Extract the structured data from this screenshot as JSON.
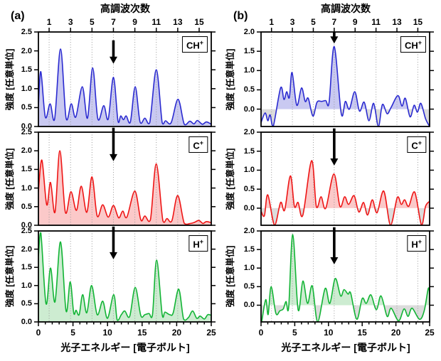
{
  "figure": {
    "panel_labels": [
      "(a)",
      "(b)"
    ],
    "top_axis_title": "高調波次数",
    "x_axis_title": "光子エネルギー [電子ボルト]",
    "y_axis_title": "強度 [任意単位]",
    "background": "#ffffff",
    "frame_color": "#000000",
    "gridline_color": "#9a9a9a",
    "negative_fill": "#dcdcdc",
    "arrow_color": "#000000"
  },
  "chart_data": {
    "type": "line",
    "xlim": [
      0,
      25
    ],
    "x_major_ticks": [
      0,
      5,
      10,
      15,
      20,
      25
    ],
    "x_minor_step": 1,
    "harmonic_orders": [
      1,
      3,
      5,
      7,
      9,
      11,
      13,
      15
    ],
    "harmonic_spacing_ev": 1.55,
    "arrow_marker_x_ev": 10.85,
    "grid": true,
    "columns": {
      "a": {
        "label": "(a)",
        "ylim": [
          0,
          2.5
        ],
        "yticks": [
          0,
          0.5,
          1,
          1.5,
          2,
          2.5
        ]
      },
      "b": {
        "label": "(b)",
        "ylim": [
          -0.45,
          2.0
        ],
        "yticks": [
          0,
          0.5,
          1,
          1.5,
          2
        ]
      }
    },
    "panels": [
      {
        "id": "a-chplus",
        "column": "a",
        "row": 0,
        "species": "CH",
        "charge": "+",
        "line_color": "#2a2ad0",
        "fill_color": "#c9c9f1",
        "arrow_y": [
          2.28,
          1.66
        ],
        "points": [
          [
            0,
            0.55
          ],
          [
            0.35,
            1.45
          ],
          [
            1.0,
            0.25
          ],
          [
            1.7,
            0.6
          ],
          [
            2.35,
            0.2
          ],
          [
            3.2,
            2.05
          ],
          [
            4.0,
            0.22
          ],
          [
            4.75,
            0.6
          ],
          [
            5.4,
            0.25
          ],
          [
            6.35,
            1.05
          ],
          [
            7.1,
            0.22
          ],
          [
            7.85,
            1.55
          ],
          [
            8.6,
            0.2
          ],
          [
            9.45,
            0.55
          ],
          [
            10.1,
            0.2
          ],
          [
            10.85,
            1.3
          ],
          [
            11.5,
            0.15
          ],
          [
            11.9,
            0.28
          ],
          [
            12.3,
            0.18
          ],
          [
            12.7,
            0.28
          ],
          [
            13.3,
            0.12
          ],
          [
            14.0,
            1.05
          ],
          [
            14.7,
            0.12
          ],
          [
            15.4,
            0.22
          ],
          [
            16.1,
            0.1
          ],
          [
            17.05,
            1.5
          ],
          [
            17.9,
            0.1
          ],
          [
            18.4,
            0.15
          ],
          [
            19.2,
            0.1
          ],
          [
            20.2,
            0.72
          ],
          [
            21.1,
            0.06
          ],
          [
            21.9,
            0.14
          ],
          [
            22.5,
            0.07
          ],
          [
            23.0,
            0.16
          ],
          [
            23.7,
            0.06
          ],
          [
            24.3,
            0.12
          ],
          [
            25,
            0.06
          ]
        ]
      },
      {
        "id": "a-cplus",
        "column": "a",
        "row": 1,
        "species": "C",
        "charge": "+",
        "line_color": "#ee1515",
        "fill_color": "#fbc9c9",
        "arrow_y": [
          2.62,
          1.72
        ],
        "points": [
          [
            0,
            0.9
          ],
          [
            0.5,
            1.75
          ],
          [
            1.2,
            0.55
          ],
          [
            1.75,
            1.15
          ],
          [
            2.4,
            0.35
          ],
          [
            3.1,
            2.0
          ],
          [
            3.9,
            0.35
          ],
          [
            4.7,
            0.9
          ],
          [
            5.5,
            0.4
          ],
          [
            6.2,
            1.05
          ],
          [
            7.0,
            0.35
          ],
          [
            7.75,
            1.3
          ],
          [
            8.5,
            0.25
          ],
          [
            9.3,
            0.55
          ],
          [
            10.1,
            0.22
          ],
          [
            10.85,
            0.53
          ],
          [
            11.6,
            0.2
          ],
          [
            12.2,
            0.38
          ],
          [
            12.8,
            0.22
          ],
          [
            13.95,
            0.92
          ],
          [
            14.8,
            0.15
          ],
          [
            15.4,
            0.25
          ],
          [
            16.2,
            0.15
          ],
          [
            17.05,
            1.65
          ],
          [
            18.0,
            0.12
          ],
          [
            18.6,
            0.18
          ],
          [
            19.3,
            0.12
          ],
          [
            20.15,
            0.8
          ],
          [
            21.1,
            0.05
          ],
          [
            22.0,
            0.05
          ],
          [
            22.6,
            0.08
          ],
          [
            23.2,
            0.13
          ],
          [
            23.8,
            0.05
          ],
          [
            24.3,
            0.1
          ],
          [
            25,
            0.07
          ]
        ]
      },
      {
        "id": "a-hplus",
        "column": "a",
        "row": 2,
        "species": "H",
        "charge": "+",
        "line_color": "#12b435",
        "fill_color": "#cdecd1",
        "arrow_y": [
          2.62,
          1.72
        ],
        "points": [
          [
            0,
            1.8
          ],
          [
            0.35,
            2.45
          ],
          [
            1.1,
            0.5
          ],
          [
            1.75,
            1.48
          ],
          [
            2.4,
            0.55
          ],
          [
            3.2,
            2.2
          ],
          [
            4.0,
            0.3
          ],
          [
            4.6,
            1.1
          ],
          [
            5.1,
            0.25
          ],
          [
            5.45,
            0.32
          ],
          [
            5.9,
            0.2
          ],
          [
            6.4,
            0.75
          ],
          [
            7.0,
            0.25
          ],
          [
            7.7,
            1.0
          ],
          [
            8.5,
            0.2
          ],
          [
            9.3,
            0.57
          ],
          [
            10.0,
            0.1
          ],
          [
            10.9,
            0.75
          ],
          [
            11.4,
            0.05
          ],
          [
            12.0,
            0.2
          ],
          [
            12.5,
            0.3
          ],
          [
            13.2,
            0.15
          ],
          [
            14.0,
            0.95
          ],
          [
            14.8,
            0.18
          ],
          [
            15.4,
            0.2
          ],
          [
            16.0,
            0.23
          ],
          [
            16.5,
            0.2
          ],
          [
            17.1,
            1.7
          ],
          [
            17.9,
            0.2
          ],
          [
            18.3,
            0.27
          ],
          [
            19.0,
            0.2
          ],
          [
            19.5,
            0.25
          ],
          [
            20.3,
            0.9
          ],
          [
            21.0,
            0.08
          ],
          [
            21.7,
            0.12
          ],
          [
            22.3,
            0.3
          ],
          [
            22.9,
            0.1
          ],
          [
            23.4,
            0.16
          ],
          [
            24.0,
            0.08
          ],
          [
            24.5,
            0.2
          ],
          [
            25,
            0.18
          ]
        ]
      },
      {
        "id": "b-chplus",
        "column": "b",
        "row": 0,
        "species": "CH",
        "charge": "+",
        "line_color": "#2a2ad0",
        "fill_color": "#c9c9f1",
        "arrow_y": [
          2.0,
          1.7
        ],
        "points": [
          [
            0,
            -0.35
          ],
          [
            0.6,
            -0.1
          ],
          [
            1.0,
            -0.3
          ],
          [
            1.35,
            -0.15
          ],
          [
            1.8,
            -0.45
          ],
          [
            2.9,
            0.55
          ],
          [
            3.4,
            0.25
          ],
          [
            3.8,
            0.45
          ],
          [
            4.2,
            0.3
          ],
          [
            4.6,
            0.95
          ],
          [
            5.3,
            0.1
          ],
          [
            6.0,
            0.55
          ],
          [
            6.55,
            0.2
          ],
          [
            7.0,
            0.28
          ],
          [
            7.7,
            -0.18
          ],
          [
            8.3,
            0.18
          ],
          [
            9.0,
            0.2
          ],
          [
            9.6,
            0.22
          ],
          [
            10.1,
            0.18
          ],
          [
            10.85,
            1.62
          ],
          [
            11.9,
            -0.12
          ],
          [
            12.5,
            0.2
          ],
          [
            13.1,
            0.0
          ],
          [
            13.9,
            0.45
          ],
          [
            14.6,
            -0.05
          ],
          [
            15.3,
            0.18
          ],
          [
            16.0,
            -0.3
          ],
          [
            16.7,
            0.15
          ],
          [
            17.4,
            -0.45
          ],
          [
            18.0,
            0.12
          ],
          [
            18.7,
            -0.12
          ],
          [
            19.3,
            0.05
          ],
          [
            20.3,
            0.35
          ],
          [
            20.9,
            0.08
          ],
          [
            21.4,
            0.28
          ],
          [
            22.1,
            -0.2
          ],
          [
            22.7,
            0.1
          ],
          [
            23.2,
            -0.08
          ],
          [
            23.7,
            0.15
          ],
          [
            24.4,
            -0.25
          ],
          [
            25,
            -0.45
          ]
        ]
      },
      {
        "id": "b-cplus",
        "column": "b",
        "row": 1,
        "species": "C",
        "charge": "+",
        "line_color": "#ee1515",
        "fill_color": "#fbc9c9",
        "arrow_y": [
          2.1,
          1.12
        ],
        "points": [
          [
            0,
            -0.08
          ],
          [
            0.5,
            -0.2
          ],
          [
            1.0,
            0.35
          ],
          [
            2.0,
            -0.45
          ],
          [
            2.9,
            0.15
          ],
          [
            3.5,
            -0.05
          ],
          [
            4.35,
            0.85
          ],
          [
            4.95,
            0.05
          ],
          [
            5.5,
            0.15
          ],
          [
            6.2,
            -0.18
          ],
          [
            7.5,
            1.25
          ],
          [
            8.2,
            0.05
          ],
          [
            8.9,
            0.3
          ],
          [
            9.6,
            0.0
          ],
          [
            10.8,
            0.9
          ],
          [
            11.7,
            0.05
          ],
          [
            12.4,
            0.3
          ],
          [
            13.0,
            0.1
          ],
          [
            13.8,
            0.33
          ],
          [
            14.5,
            -0.1
          ],
          [
            15.2,
            0.15
          ],
          [
            15.8,
            -0.18
          ],
          [
            16.5,
            0.22
          ],
          [
            17.2,
            -0.12
          ],
          [
            18.2,
            0.45
          ],
          [
            19.2,
            -0.45
          ],
          [
            20.2,
            0.28
          ],
          [
            20.8,
            0.1
          ],
          [
            21.3,
            0.22
          ],
          [
            21.9,
            0.05
          ],
          [
            22.8,
            0.42
          ],
          [
            23.8,
            -0.45
          ],
          [
            24.4,
            0.05
          ],
          [
            25,
            0.18
          ]
        ]
      },
      {
        "id": "b-hplus",
        "column": "b",
        "row": 2,
        "species": "H",
        "charge": "+",
        "line_color": "#12b435",
        "fill_color": "#cdecd1",
        "arrow_y": [
          2.1,
          1.1
        ],
        "points": [
          [
            0.1,
            -0.45
          ],
          [
            0.7,
            0.15
          ],
          [
            1.05,
            -0.25
          ],
          [
            1.5,
            0.5
          ],
          [
            2.2,
            -0.22
          ],
          [
            2.8,
            -0.15
          ],
          [
            3.3,
            -0.1
          ],
          [
            3.7,
            0.1
          ],
          [
            4.1,
            -0.05
          ],
          [
            4.7,
            1.9
          ],
          [
            5.5,
            -0.12
          ],
          [
            6.2,
            0.65
          ],
          [
            6.9,
            0.05
          ],
          [
            7.6,
            0.52
          ],
          [
            8.4,
            -0.45
          ],
          [
            9.5,
            0.45
          ],
          [
            10.2,
            0.05
          ],
          [
            11.0,
            0.72
          ],
          [
            11.8,
            0.25
          ],
          [
            12.3,
            0.42
          ],
          [
            12.9,
            0.3
          ],
          [
            13.3,
            0.32
          ],
          [
            14.2,
            -0.38
          ],
          [
            15.0,
            0.18
          ],
          [
            15.6,
            0.05
          ],
          [
            16.3,
            0.28
          ],
          [
            17.1,
            -0.12
          ],
          [
            17.8,
            0.25
          ],
          [
            18.7,
            -0.3
          ],
          [
            19.3,
            -0.08
          ],
          [
            20.4,
            -0.42
          ],
          [
            21.2,
            -0.1
          ],
          [
            21.8,
            -0.3
          ],
          [
            22.4,
            -0.08
          ],
          [
            23.5,
            -0.38
          ],
          [
            24.2,
            -0.15
          ],
          [
            24.8,
            0.45
          ],
          [
            25,
            0.3
          ]
        ]
      }
    ]
  }
}
